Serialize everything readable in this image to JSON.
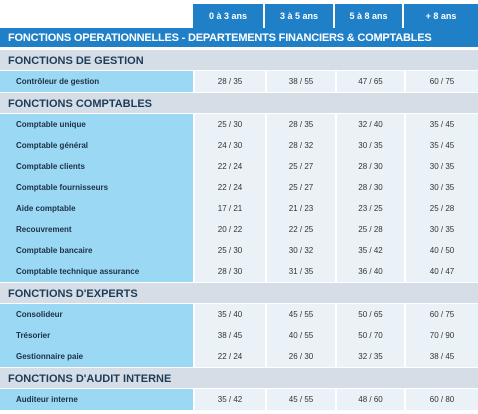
{
  "columns": [
    "0 à 3 ans",
    "3 à 5 ans",
    "5 à 8 ans",
    "+ 8 ans"
  ],
  "title": "FONCTIONS OPERATIONNELLES - DEPARTEMENTS FINANCIERS & COMPTABLES",
  "sections": [
    {
      "heading": "FONCTIONS DE GESTION",
      "rows": [
        {
          "label": "Contrôleur de gestion",
          "values": [
            "28 / 35",
            "38 / 55",
            "47 / 65",
            "60 / 75"
          ]
        }
      ]
    },
    {
      "heading": "FONCTIONS COMPTABLES",
      "rows": [
        {
          "label": "Comptable unique",
          "values": [
            "25 / 30",
            "28 / 35",
            "32 / 40",
            "35 / 45"
          ]
        },
        {
          "label": "Comptable général",
          "values": [
            "24 / 30",
            "28 / 32",
            "30 / 35",
            "35 / 45"
          ]
        },
        {
          "label": "Comptable clients",
          "values": [
            "22 / 24",
            "25 / 27",
            "28 / 30",
            "30 / 35"
          ]
        },
        {
          "label": "Comptable fournisseurs",
          "values": [
            "22 / 24",
            "25 / 27",
            "28 / 30",
            "30 / 35"
          ]
        },
        {
          "label": "Aide comptable",
          "values": [
            "17 / 21",
            "21 / 23",
            "23 / 25",
            "25 / 28"
          ]
        },
        {
          "label": "Recouvrement",
          "values": [
            "20 / 22",
            "22 / 25",
            "25 / 28",
            "30 / 35"
          ]
        },
        {
          "label": "Comptable bancaire",
          "values": [
            "25 / 30",
            "30 / 32",
            "35 / 42",
            "40 / 50"
          ]
        },
        {
          "label": "Comptable technique assurance",
          "values": [
            "28 / 30",
            "31 / 35",
            "36 / 40",
            "40 / 47"
          ]
        }
      ]
    },
    {
      "heading": "FONCTIONS D'EXPERTS",
      "rows": [
        {
          "label": "Consolideur",
          "values": [
            "35 / 40",
            "45 / 55",
            "50 / 65",
            "60 / 75"
          ]
        },
        {
          "label": "Trésorier",
          "values": [
            "38 / 45",
            "40 / 55",
            "50 / 70",
            "70 / 90"
          ]
        },
        {
          "label": "Gestionnaire paie",
          "values": [
            "22 / 24",
            "26 / 30",
            "32 / 35",
            "38 / 45"
          ]
        }
      ]
    },
    {
      "heading": "FONCTIONS D'AUDIT INTERNE",
      "rows": [
        {
          "label": "Auditeur interne",
          "values": [
            "35 / 42",
            "45 / 55",
            "48 / 60",
            "60 / 80"
          ]
        }
      ]
    }
  ]
}
